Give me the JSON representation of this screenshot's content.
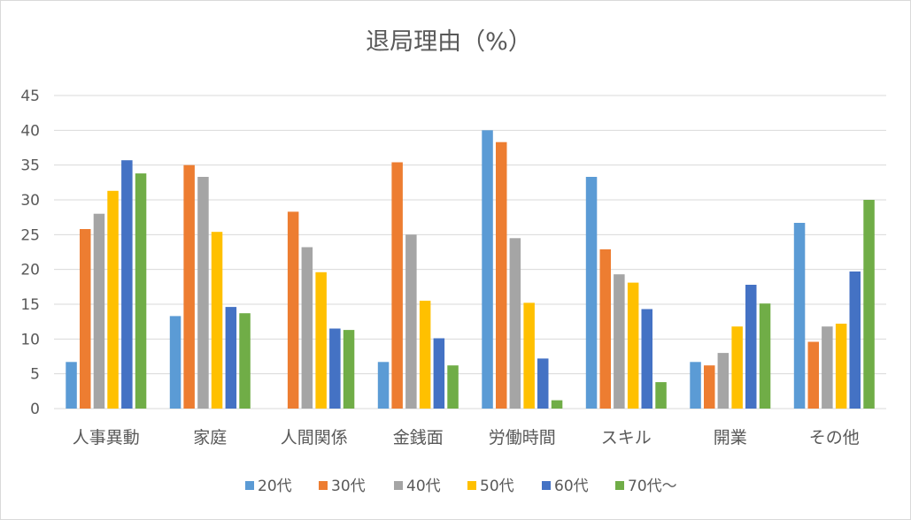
{
  "chart_data": {
    "type": "bar",
    "title": "退局理由（%）",
    "xlabel": "",
    "ylabel": "",
    "ylim": [
      0,
      45
    ],
    "yticks": [
      0,
      5,
      10,
      15,
      20,
      25,
      30,
      35,
      40,
      45
    ],
    "grid": true,
    "legend_position": "bottom",
    "categories": [
      "人事異動",
      "家庭",
      "人間関係",
      "金銭面",
      "労働時間",
      "スキル",
      "開業",
      "その他"
    ],
    "series": [
      {
        "name": "20代",
        "color": "#5B9BD5",
        "values": [
          6.7,
          13.3,
          0,
          6.7,
          40,
          33.3,
          6.7,
          26.7
        ]
      },
      {
        "name": "30代",
        "color": "#ED7D31",
        "values": [
          25.8,
          35,
          28.3,
          35.4,
          38.3,
          22.9,
          6.2,
          9.6
        ]
      },
      {
        "name": "40代",
        "color": "#A5A5A5",
        "values": [
          28,
          33.3,
          23.2,
          25,
          24.5,
          19.3,
          8,
          11.8
        ]
      },
      {
        "name": "50代",
        "color": "#FFC000",
        "values": [
          31.3,
          25.4,
          19.6,
          15.5,
          15.2,
          18.1,
          11.8,
          12.2
        ]
      },
      {
        "name": "60代",
        "color": "#4472C4",
        "values": [
          35.7,
          14.6,
          11.5,
          10.1,
          7.2,
          14.3,
          17.8,
          19.7
        ]
      },
      {
        "name": "70代～",
        "color": "#70AD47",
        "values": [
          33.8,
          13.7,
          11.3,
          6.2,
          1.2,
          3.8,
          15.1,
          30
        ]
      }
    ]
  }
}
